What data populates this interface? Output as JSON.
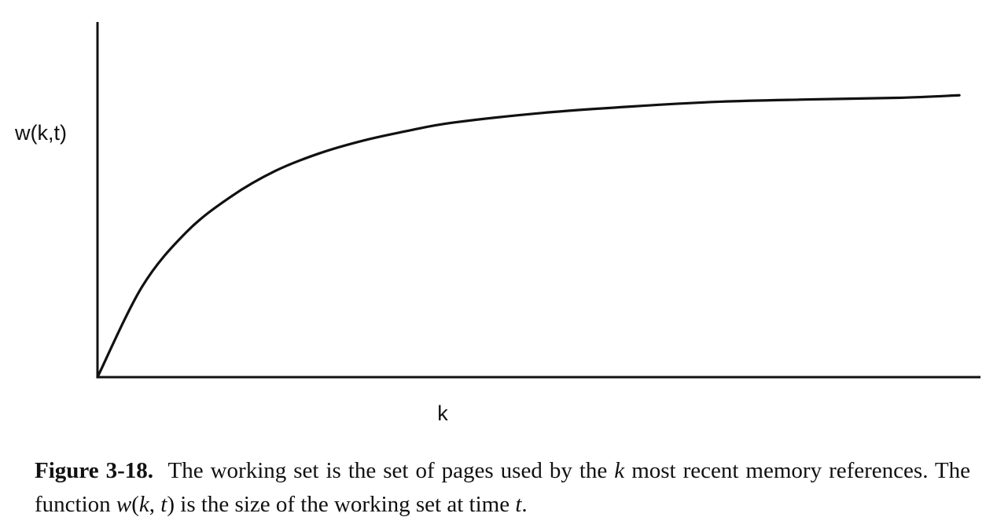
{
  "chart_data": {
    "type": "line",
    "title": "",
    "xlabel": "k",
    "ylabel": "w(k,t)",
    "xlim": [
      0,
      1
    ],
    "ylim": [
      0,
      1
    ],
    "grid": false,
    "series": [
      {
        "x": [
          0,
          0.05,
          0.1,
          0.15,
          0.2,
          0.25,
          0.3,
          0.35,
          0.4,
          0.5,
          0.6,
          0.7,
          0.8,
          0.9,
          0.97
        ],
        "values": [
          0,
          0.28,
          0.45,
          0.56,
          0.64,
          0.695,
          0.735,
          0.765,
          0.79,
          0.82,
          0.84,
          0.855,
          0.862,
          0.867,
          0.875
        ]
      }
    ],
    "color": "#111111"
  },
  "caption": {
    "figure_number": "Figure 3-18.",
    "text_1": "The working set is the set of pages used by the",
    "k": "k",
    "text_2": "most recent memory references. The function",
    "w": "w",
    "paren_open": "(",
    "k2": "k",
    "comma": ", ",
    "t": "t",
    "paren_close": ")",
    "text_3": "is the size of the working set at time",
    "t2": "t",
    "period": "."
  }
}
